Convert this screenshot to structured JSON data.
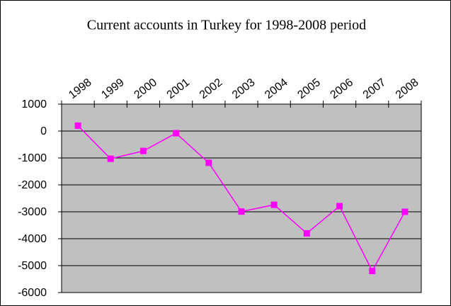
{
  "chart_data": {
    "type": "line",
    "title": "Current accounts in Turkey for 1998-2008 period",
    "categories": [
      "1998",
      "1999",
      "2000",
      "2001",
      "2002",
      "2003",
      "2004",
      "2005",
      "2006",
      "2007",
      "2008"
    ],
    "series": [
      {
        "name": "Current accounts",
        "color": "#ff00ff",
        "values": [
          200,
          -1030,
          -740,
          -80,
          -1180,
          -2990,
          -2740,
          -3800,
          -2790,
          -5200,
          -3000
        ]
      }
    ],
    "ylim": [
      -6000,
      1000
    ],
    "yticks": [
      -6000,
      -5000,
      -4000,
      -3000,
      -2000,
      -1000,
      0,
      1000
    ],
    "grid": true,
    "plot_background": "#c0c0c0"
  }
}
